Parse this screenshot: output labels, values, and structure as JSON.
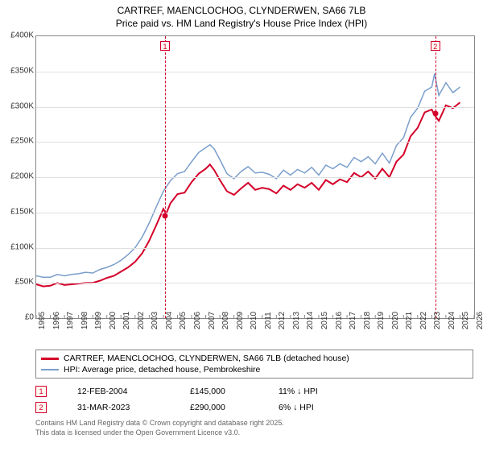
{
  "title_line1": "CARTREF, MAENCLOCHOG, CLYNDERWEN, SA66 7LB",
  "title_line2": "Price paid vs. HM Land Registry's House Price Index (HPI)",
  "chart": {
    "type": "line",
    "background_color": "#ffffff",
    "grid_color": "#e0e0e0",
    "axis_color": "#888888",
    "label_fontsize": 10,
    "title_fontsize": 12,
    "x_min": 1995,
    "x_max": 2026,
    "y_min": 0,
    "y_max": 400000,
    "y_ticks": [
      "£0",
      "£50K",
      "£100K",
      "£150K",
      "£200K",
      "£250K",
      "£300K",
      "£350K",
      "£400K"
    ],
    "y_tick_values": [
      0,
      50000,
      100000,
      150000,
      200000,
      250000,
      300000,
      350000,
      400000
    ],
    "x_ticks": [
      1995,
      1996,
      1997,
      1998,
      1999,
      2000,
      2001,
      2002,
      2003,
      2004,
      2005,
      2006,
      2007,
      2008,
      2009,
      2010,
      2011,
      2012,
      2013,
      2014,
      2015,
      2016,
      2017,
      2018,
      2019,
      2020,
      2021,
      2022,
      2023,
      2024,
      2025,
      2026
    ],
    "series": [
      {
        "name": "price_paid",
        "color": "#d4002a",
        "line_width": 2,
        "points": [
          [
            1995,
            48000
          ],
          [
            1995.5,
            45000
          ],
          [
            1996,
            46000
          ],
          [
            1996.5,
            50000
          ],
          [
            1997,
            47000
          ],
          [
            1997.5,
            48000
          ],
          [
            1998,
            49000
          ],
          [
            1998.5,
            50000
          ],
          [
            1999,
            50000
          ],
          [
            1999.5,
            53000
          ],
          [
            2000,
            57000
          ],
          [
            2000.5,
            60000
          ],
          [
            2001,
            66000
          ],
          [
            2001.5,
            72000
          ],
          [
            2002,
            80000
          ],
          [
            2002.5,
            92000
          ],
          [
            2003,
            110000
          ],
          [
            2003.5,
            132000
          ],
          [
            2004,
            155000
          ],
          [
            2004.2,
            148000
          ],
          [
            2004.5,
            163000
          ],
          [
            2005,
            176000
          ],
          [
            2005.5,
            178000
          ],
          [
            2006,
            193000
          ],
          [
            2006.5,
            205000
          ],
          [
            2007,
            212000
          ],
          [
            2007.3,
            218000
          ],
          [
            2007.6,
            210000
          ],
          [
            2008,
            196000
          ],
          [
            2008.5,
            180000
          ],
          [
            2009,
            175000
          ],
          [
            2009.5,
            184000
          ],
          [
            2010,
            192000
          ],
          [
            2010.5,
            182000
          ],
          [
            2011,
            185000
          ],
          [
            2011.5,
            183000
          ],
          [
            2012,
            177000
          ],
          [
            2012.5,
            188000
          ],
          [
            2013,
            182000
          ],
          [
            2013.5,
            190000
          ],
          [
            2014,
            185000
          ],
          [
            2014.5,
            192000
          ],
          [
            2015,
            182000
          ],
          [
            2015.5,
            196000
          ],
          [
            2016,
            190000
          ],
          [
            2016.5,
            197000
          ],
          [
            2017,
            193000
          ],
          [
            2017.5,
            206000
          ],
          [
            2018,
            200000
          ],
          [
            2018.5,
            208000
          ],
          [
            2019,
            198000
          ],
          [
            2019.5,
            212000
          ],
          [
            2020,
            200000
          ],
          [
            2020.5,
            222000
          ],
          [
            2021,
            232000
          ],
          [
            2021.5,
            258000
          ],
          [
            2022,
            270000
          ],
          [
            2022.5,
            292000
          ],
          [
            2023,
            296000
          ],
          [
            2023.2,
            288000
          ],
          [
            2023.5,
            280000
          ],
          [
            2024,
            302000
          ],
          [
            2024.5,
            298000
          ],
          [
            2025,
            306000
          ]
        ]
      },
      {
        "name": "hpi",
        "color": "#7a9ecb",
        "line_width": 1.5,
        "points": [
          [
            1995,
            60000
          ],
          [
            1995.5,
            58000
          ],
          [
            1996,
            58000
          ],
          [
            1996.5,
            62000
          ],
          [
            1997,
            60000
          ],
          [
            1997.5,
            62000
          ],
          [
            1998,
            63000
          ],
          [
            1998.5,
            65000
          ],
          [
            1999,
            64000
          ],
          [
            1999.5,
            69000
          ],
          [
            2000,
            72000
          ],
          [
            2000.5,
            76000
          ],
          [
            2001,
            82000
          ],
          [
            2001.5,
            90000
          ],
          [
            2002,
            100000
          ],
          [
            2002.5,
            115000
          ],
          [
            2003,
            135000
          ],
          [
            2003.5,
            158000
          ],
          [
            2004,
            180000
          ],
          [
            2004.5,
            195000
          ],
          [
            2005,
            205000
          ],
          [
            2005.5,
            208000
          ],
          [
            2006,
            222000
          ],
          [
            2006.5,
            235000
          ],
          [
            2007,
            242000
          ],
          [
            2007.3,
            246000
          ],
          [
            2007.6,
            240000
          ],
          [
            2008,
            225000
          ],
          [
            2008.5,
            205000
          ],
          [
            2009,
            198000
          ],
          [
            2009.5,
            208000
          ],
          [
            2010,
            215000
          ],
          [
            2010.5,
            206000
          ],
          [
            2011,
            207000
          ],
          [
            2011.5,
            204000
          ],
          [
            2012,
            198000
          ],
          [
            2012.5,
            210000
          ],
          [
            2013,
            203000
          ],
          [
            2013.5,
            211000
          ],
          [
            2014,
            206000
          ],
          [
            2014.5,
            214000
          ],
          [
            2015,
            203000
          ],
          [
            2015.5,
            217000
          ],
          [
            2016,
            212000
          ],
          [
            2016.5,
            219000
          ],
          [
            2017,
            214000
          ],
          [
            2017.5,
            228000
          ],
          [
            2018,
            222000
          ],
          [
            2018.5,
            229000
          ],
          [
            2019,
            219000
          ],
          [
            2019.5,
            234000
          ],
          [
            2020,
            220000
          ],
          [
            2020.5,
            245000
          ],
          [
            2021,
            256000
          ],
          [
            2021.5,
            285000
          ],
          [
            2022,
            298000
          ],
          [
            2022.5,
            322000
          ],
          [
            2023,
            328000
          ],
          [
            2023.2,
            347000
          ],
          [
            2023.5,
            316000
          ],
          [
            2024,
            334000
          ],
          [
            2024.5,
            320000
          ],
          [
            2025,
            328000
          ]
        ]
      }
    ],
    "callouts": [
      {
        "n": "1",
        "year": 2004.12,
        "price": 145000,
        "color": "#d4002a"
      },
      {
        "n": "2",
        "year": 2023.25,
        "price": 290000,
        "color": "#d4002a"
      }
    ]
  },
  "legend": {
    "items": [
      {
        "color": "#d4002a",
        "width": 3,
        "label": "CARTREF, MAENCLOCHOG, CLYNDERWEN, SA66 7LB (detached house)"
      },
      {
        "color": "#7a9ecb",
        "width": 2,
        "label": "HPI: Average price, detached house, Pembrokeshire"
      }
    ]
  },
  "callout_rows": [
    {
      "n": "1",
      "color": "#d4002a",
      "date": "12-FEB-2004",
      "price": "£145,000",
      "hpi": "11% ↓ HPI"
    },
    {
      "n": "2",
      "color": "#d4002a",
      "date": "31-MAR-2023",
      "price": "£290,000",
      "hpi": "6% ↓ HPI"
    }
  ],
  "footer_line1": "Contains HM Land Registry data © Crown copyright and database right 2025.",
  "footer_line2": "This data is licensed under the Open Government Licence v3.0."
}
